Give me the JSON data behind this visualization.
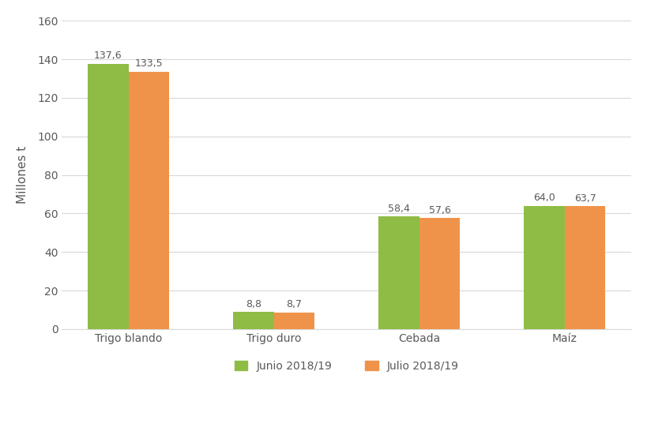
{
  "categories": [
    "Trigo blando",
    "Trigo duro",
    "Cebada",
    "Maíz"
  ],
  "junio_values": [
    137.6,
    8.8,
    58.4,
    64.0
  ],
  "julio_values": [
    133.5,
    8.7,
    57.6,
    63.7
  ],
  "junio_color": "#8fbc45",
  "julio_color": "#f0934a",
  "ylabel": "Millones t",
  "ylim": [
    0,
    160
  ],
  "yticks": [
    0,
    20,
    40,
    60,
    80,
    100,
    120,
    140,
    160
  ],
  "legend_junio": "Junio 2018/19",
  "legend_julio": "Julio 2018/19",
  "bar_width": 0.28,
  "label_fontsize": 9,
  "tick_fontsize": 10,
  "ylabel_fontsize": 11,
  "legend_fontsize": 10,
  "background_color": "#ffffff",
  "grid_color": "#d9d9d9",
  "text_color": "#595959"
}
